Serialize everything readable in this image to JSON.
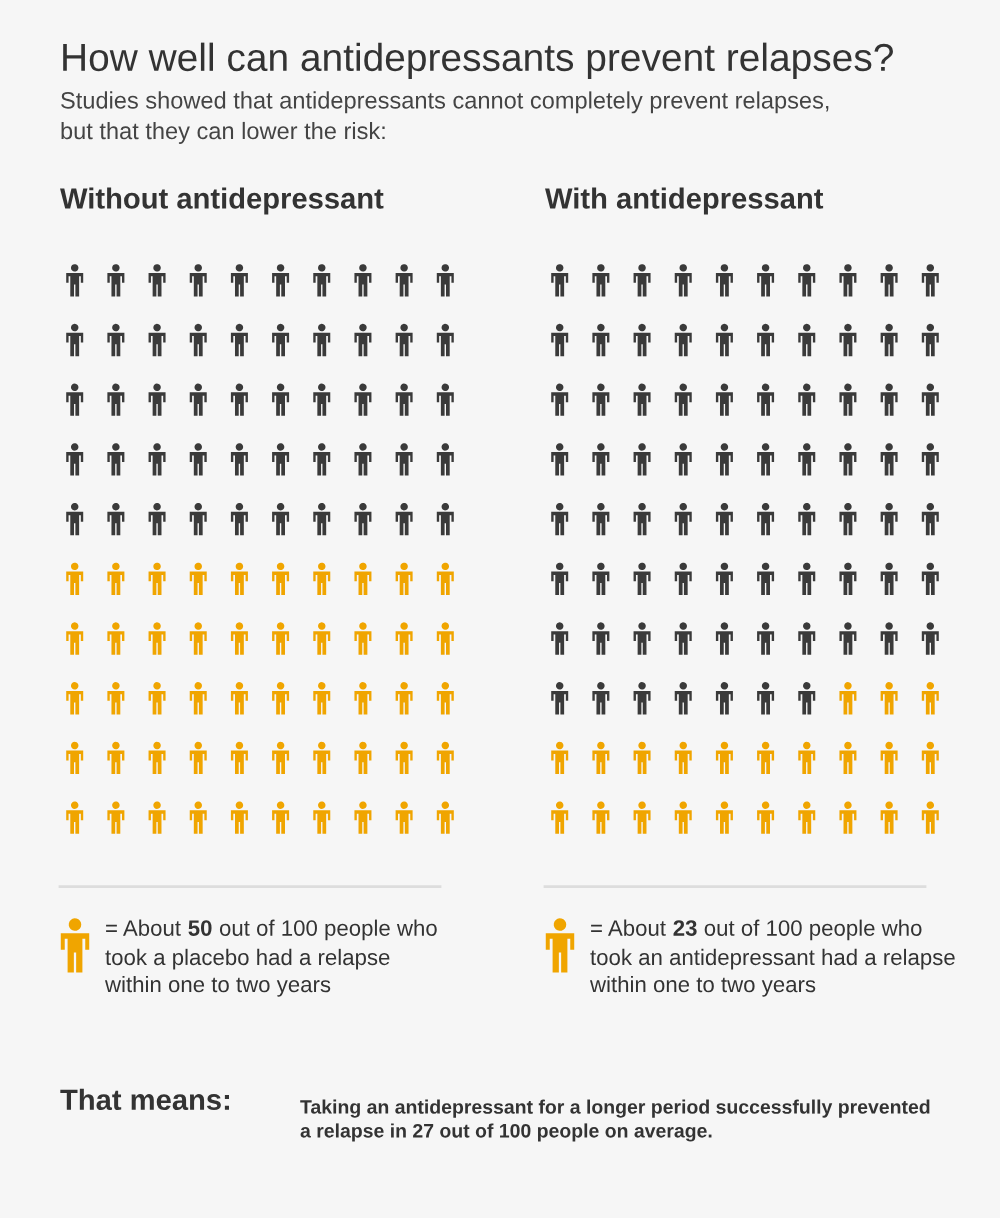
{
  "chart_data": {
    "type": "other",
    "title": "How well can antidepressants prevent relapses?",
    "subtitle": "Studies showed that antidepressants cannot completely prevent relapses,\nbut that they can lower the risk:",
    "categories": [
      "Without antidepressant",
      "With antidepressant"
    ],
    "values": [
      50,
      23
    ],
    "colors": [
      "#f0a500",
      "#f0a500"
    ],
    "data_labels": true,
    "annotations": [
      "= About",
      "out of 100 people who",
      "took a placebo had a relapse\nwithin one to two years",
      "= About",
      "out of 100 people who",
      "took an antidepressant had a relapse\nwithin one to two years",
      "That means:",
      "Taking an antidepressant for a longer period successfully prevented\na relapse in 27 out of 100 people on average."
    ]
  }
}
